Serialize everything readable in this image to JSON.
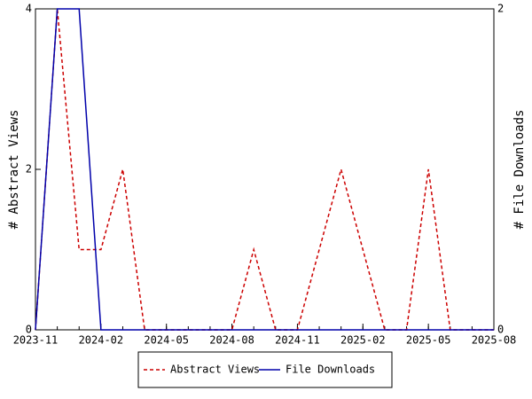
{
  "chart_data": {
    "type": "line",
    "x": [
      "2023-11",
      "2023-12",
      "2024-01",
      "2024-02",
      "2024-03",
      "2024-04",
      "2024-05",
      "2024-06",
      "2024-07",
      "2024-08",
      "2024-09",
      "2024-10",
      "2024-11",
      "2024-12",
      "2025-01",
      "2025-02",
      "2025-03",
      "2025-04",
      "2025-05",
      "2025-06",
      "2025-07",
      "2025-08"
    ],
    "series": [
      {
        "name": "Abstract Views",
        "color": "#cc0000",
        "dashed": true,
        "values": [
          0,
          4,
          1,
          1,
          2,
          0,
          0,
          0,
          0,
          0,
          1,
          0,
          0,
          1,
          2,
          1,
          0,
          0,
          2,
          0,
          0,
          0
        ]
      },
      {
        "name": "File Downloads",
        "color": "#0000aa",
        "axis": "y2",
        "values": [
          0,
          2,
          2,
          0,
          0,
          0,
          0,
          0,
          0,
          0,
          0,
          0,
          0,
          0,
          0,
          0,
          0,
          0,
          0,
          0,
          0,
          0
        ]
      }
    ],
    "xlim": [
      "2023-11",
      "2025-08"
    ],
    "xticks": [
      "2023-11",
      "2024-02",
      "2024-05",
      "2024-08",
      "2024-11",
      "2025-02",
      "2025-05",
      "2025-08"
    ],
    "ylabel": "# Abstract Views",
    "ylim": [
      0,
      4
    ],
    "yticks": [
      0,
      2,
      4
    ],
    "y2label": "# File Downloads",
    "y2lim": [
      0,
      2
    ],
    "y2ticks": [
      0,
      2
    ],
    "legend": "bottom"
  }
}
